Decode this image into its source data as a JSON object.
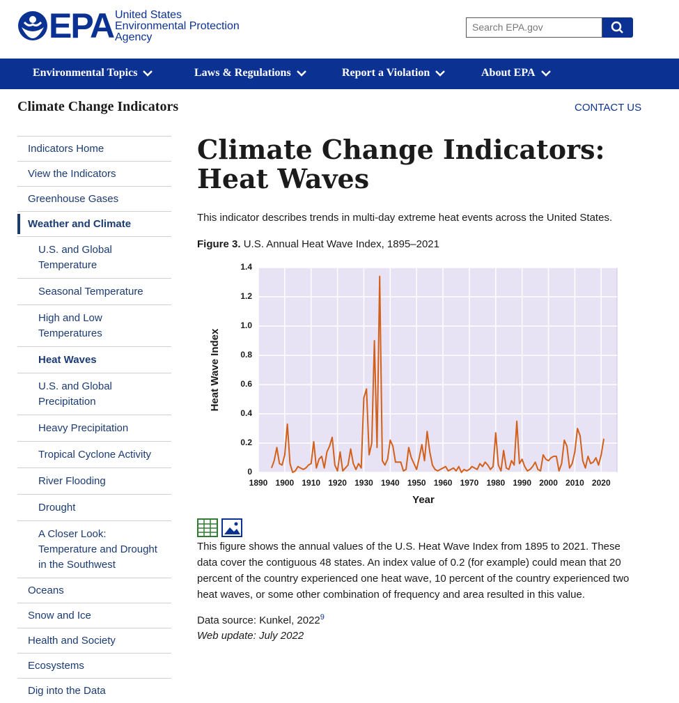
{
  "header": {
    "logo": {
      "mark": "EPA",
      "line1": "United States",
      "line2": "Environmental Protection",
      "line3": "Agency"
    },
    "search_placeholder": "Search EPA.gov"
  },
  "nav": [
    "Environmental Topics",
    "Laws & Regulations",
    "Report a Violation",
    "About EPA"
  ],
  "section": {
    "title": "Climate Change Indicators",
    "contact": "CONTACT US"
  },
  "sidebar": [
    {
      "label": "Indicators Home",
      "level": 1
    },
    {
      "label": "View the Indicators",
      "level": 1
    },
    {
      "label": "Greenhouse Gases",
      "level": 1
    },
    {
      "label": "Weather and Climate",
      "level": 1,
      "active": true
    },
    {
      "label": "U.S. and Global Temperature",
      "level": 2
    },
    {
      "label": "Seasonal Temperature",
      "level": 2
    },
    {
      "label": "High and Low Temperatures",
      "level": 2
    },
    {
      "label": "Heat Waves",
      "level": 2,
      "active": true
    },
    {
      "label": "U.S. and Global Precipitation",
      "level": 2
    },
    {
      "label": "Heavy Precipitation",
      "level": 2
    },
    {
      "label": "Tropical Cyclone Activity",
      "level": 2
    },
    {
      "label": "River Flooding",
      "level": 2
    },
    {
      "label": "Drought",
      "level": 2
    },
    {
      "label": "A Closer Look: Temperature and Drought in the Southwest",
      "level": 2
    },
    {
      "label": "Oceans",
      "level": 1
    },
    {
      "label": "Snow and Ice",
      "level": 1
    },
    {
      "label": "Health and Society",
      "level": 1
    },
    {
      "label": "Ecosystems",
      "level": 1
    },
    {
      "label": "Dig into the Data",
      "level": 1
    }
  ],
  "main": {
    "title": "Climate Change Indicators: Heat Waves",
    "intro": "This indicator describes trends in multi-day extreme heat events across the United States.",
    "figure_label": "Figure 3.",
    "figure_caption": "U.S. Annual Heat Wave Index, 1895–2021",
    "description": "This figure shows the annual values of the U.S. Heat Wave Index from 1895 to 2021. These data cover the contiguous 48 states. An index value of 0.2 (for example) could mean that 20 percent of the country experienced one heat wave, 10 percent of the country experienced two heat waves, or some other combination of frequency and area resulted in this value.",
    "data_source": "Data source: Kunkel, 2022",
    "footnote": "9",
    "web_update": "Web update: July 2022"
  },
  "chart_data": {
    "type": "line",
    "x_label": "Year",
    "y_label": "Heat Wave Index",
    "color": "#d2601a",
    "grid": true,
    "x": [
      1895,
      1896,
      1897,
      1898,
      1899,
      1900,
      1901,
      1902,
      1903,
      1904,
      1905,
      1906,
      1907,
      1908,
      1909,
      1910,
      1911,
      1912,
      1913,
      1914,
      1915,
      1916,
      1917,
      1918,
      1919,
      1920,
      1921,
      1922,
      1923,
      1924,
      1925,
      1926,
      1927,
      1928,
      1929,
      1930,
      1931,
      1932,
      1933,
      1934,
      1935,
      1936,
      1937,
      1938,
      1939,
      1940,
      1941,
      1942,
      1943,
      1944,
      1945,
      1946,
      1947,
      1948,
      1949,
      1950,
      1951,
      1952,
      1953,
      1954,
      1955,
      1956,
      1957,
      1958,
      1959,
      1960,
      1961,
      1962,
      1963,
      1964,
      1965,
      1966,
      1967,
      1968,
      1969,
      1970,
      1971,
      1972,
      1973,
      1974,
      1975,
      1976,
      1977,
      1978,
      1979,
      1980,
      1981,
      1982,
      1983,
      1984,
      1985,
      1986,
      1987,
      1988,
      1989,
      1990,
      1991,
      1992,
      1993,
      1994,
      1995,
      1996,
      1997,
      1998,
      1999,
      2000,
      2001,
      2002,
      2003,
      2004,
      2005,
      2006,
      2007,
      2008,
      2009,
      2010,
      2011,
      2012,
      2013,
      2014,
      2015,
      2016,
      2017,
      2018,
      2019,
      2020,
      2021
    ],
    "values": [
      0.03,
      0.08,
      0.17,
      0.06,
      0.05,
      0.12,
      0.33,
      0.06,
      0.0,
      0.01,
      0.04,
      0.03,
      0.02,
      0.03,
      0.05,
      0.06,
      0.21,
      0.03,
      0.09,
      0.11,
      0.03,
      0.14,
      0.18,
      0.24,
      0.05,
      0.01,
      0.14,
      0.01,
      0.03,
      0.05,
      0.16,
      0.06,
      0.02,
      0.06,
      0.03,
      0.51,
      0.57,
      0.12,
      0.2,
      0.9,
      0.17,
      1.34,
      0.08,
      0.05,
      0.09,
      0.22,
      0.18,
      0.07,
      0.07,
      0.07,
      0.01,
      0.02,
      0.17,
      0.1,
      0.06,
      0.02,
      0.1,
      0.19,
      0.08,
      0.28,
      0.14,
      0.05,
      0.02,
      0.01,
      0.02,
      0.03,
      0.04,
      0.01,
      0.02,
      0.03,
      0.01,
      0.04,
      0.0,
      0.02,
      0.01,
      0.02,
      0.04,
      0.03,
      0.02,
      0.06,
      0.04,
      0.07,
      0.05,
      0.02,
      0.04,
      0.27,
      0.05,
      0.01,
      0.15,
      0.03,
      0.02,
      0.08,
      0.05,
      0.35,
      0.06,
      0.09,
      0.04,
      0.01,
      0.02,
      0.04,
      0.07,
      0.02,
      0.01,
      0.12,
      0.09,
      0.08,
      0.1,
      0.11,
      0.11,
      0.01,
      0.06,
      0.22,
      0.18,
      0.03,
      0.06,
      0.14,
      0.3,
      0.25,
      0.08,
      0.03,
      0.11,
      0.06,
      0.07,
      0.1,
      0.05,
      0.12,
      0.23
    ],
    "xlim": [
      1890,
      2026
    ],
    "xticks": [
      1890,
      1900,
      1910,
      1920,
      1930,
      1940,
      1950,
      1960,
      1970,
      1980,
      1990,
      2000,
      2010,
      2020
    ],
    "ylim": [
      0,
      1.4
    ],
    "yticks": [
      0,
      0.2,
      0.4,
      0.6,
      0.8,
      {
        "value": 1,
        "label": "1.0"
      },
      1.2,
      1.4
    ]
  }
}
